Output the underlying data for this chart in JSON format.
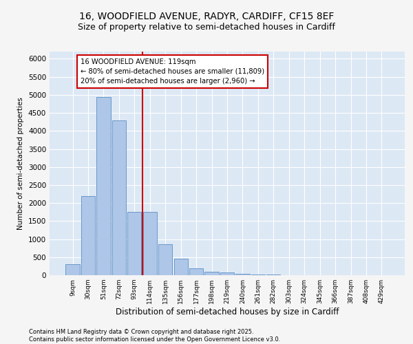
{
  "title1": "16, WOODFIELD AVENUE, RADYR, CARDIFF, CF15 8EF",
  "title2": "Size of property relative to semi-detached houses in Cardiff",
  "xlabel": "Distribution of semi-detached houses by size in Cardiff",
  "ylabel": "Number of semi-detached properties",
  "footer": "Contains HM Land Registry data © Crown copyright and database right 2025.\nContains public sector information licensed under the Open Government Licence v3.0.",
  "bar_categories": [
    "9sqm",
    "30sqm",
    "51sqm",
    "72sqm",
    "93sqm",
    "114sqm",
    "135sqm",
    "156sqm",
    "177sqm",
    "198sqm",
    "219sqm",
    "240sqm",
    "261sqm",
    "282sqm",
    "303sqm",
    "324sqm",
    "345sqm",
    "366sqm",
    "387sqm",
    "408sqm",
    "429sqm"
  ],
  "bar_values": [
    300,
    2200,
    4950,
    4300,
    1750,
    1750,
    850,
    450,
    200,
    100,
    80,
    30,
    20,
    10,
    5,
    0,
    0,
    0,
    0,
    0,
    0
  ],
  "bar_color": "#aec6e8",
  "bar_edgecolor": "#5a8fc2",
  "red_line_index": 4.5,
  "property_label": "16 WOODFIELD AVENUE: 119sqm",
  "smaller_label": "← 80% of semi-detached houses are smaller (11,809)",
  "larger_label": "20% of semi-detached houses are larger (2,960) →",
  "annotation_box_color": "#cc0000",
  "ylim": [
    0,
    6200
  ],
  "yticks": [
    0,
    500,
    1000,
    1500,
    2000,
    2500,
    3000,
    3500,
    4000,
    4500,
    5000,
    5500,
    6000
  ],
  "bg_color": "#dde8f5",
  "grid_color": "#ffffff",
  "fig_bg_color": "#f5f5f5",
  "title_fontsize": 10,
  "subtitle_fontsize": 9
}
